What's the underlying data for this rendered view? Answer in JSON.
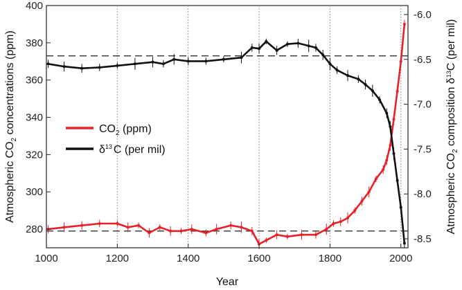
{
  "chart_data": {
    "type": "line",
    "xlabel": "Year",
    "ylabel_left": [
      "Atmospheric CO",
      "2",
      " concentrations (ppm)"
    ],
    "ylabel_right": [
      "Atmospheric CO",
      "2",
      " composition δ",
      "13",
      "C (per mil)"
    ],
    "xlim": [
      1000,
      2020
    ],
    "ylim_left": [
      270,
      400
    ],
    "ylim_right": [
      -8.6,
      -5.9
    ],
    "x_ticks": [
      1000,
      1200,
      1400,
      1600,
      1800,
      2000
    ],
    "y_ticks_left": [
      280,
      300,
      320,
      340,
      360,
      380,
      400
    ],
    "y_ticks_right": [
      "-6.0",
      "-6.5",
      "-7.0",
      "-7.5",
      "-8.0",
      "-8.5"
    ],
    "y_ticks_right_values": [
      -6.0,
      -6.5,
      -7.0,
      -7.5,
      -8.0,
      -8.5
    ],
    "reference_lines": [
      {
        "axis": "left",
        "value": 279
      },
      {
        "axis": "left",
        "value": 373
      }
    ],
    "series": [
      {
        "name_parts": [
          "CO",
          "2",
          " (ppm)"
        ],
        "color": "#e8202a",
        "axis": "left",
        "x": [
          1005,
          1050,
          1100,
          1150,
          1200,
          1230,
          1260,
          1290,
          1320,
          1350,
          1380,
          1410,
          1450,
          1480,
          1520,
          1550,
          1580,
          1600,
          1620,
          1650,
          1680,
          1720,
          1760,
          1790,
          1810,
          1830,
          1850,
          1870,
          1890,
          1910,
          1930,
          1950,
          1960,
          1970,
          1980,
          1990,
          2000,
          2010
        ],
        "y": [
          280,
          281,
          282,
          283,
          283,
          281,
          282,
          278,
          281,
          279,
          279,
          280,
          278,
          280,
          282,
          281,
          279,
          272,
          274,
          277,
          276,
          277,
          277,
          280,
          283,
          284,
          286,
          290,
          295,
          300,
          307,
          312,
          317,
          325,
          339,
          354,
          370,
          390
        ]
      },
      {
        "name_parts": [
          "δ",
          "13",
          "C (per mil)"
        ],
        "color": "#111111",
        "axis": "right",
        "x": [
          1005,
          1050,
          1100,
          1150,
          1200,
          1250,
          1300,
          1330,
          1360,
          1400,
          1450,
          1500,
          1550,
          1580,
          1600,
          1620,
          1650,
          1680,
          1710,
          1740,
          1760,
          1780,
          1800,
          1820,
          1850,
          1880,
          1900,
          1920,
          1940,
          1960,
          1970,
          1980,
          1990,
          2000,
          2010
        ],
        "y": [
          -6.55,
          -6.58,
          -6.6,
          -6.59,
          -6.57,
          -6.55,
          -6.53,
          -6.55,
          -6.5,
          -6.52,
          -6.52,
          -6.5,
          -6.48,
          -6.37,
          -6.38,
          -6.3,
          -6.4,
          -6.33,
          -6.32,
          -6.35,
          -6.37,
          -6.45,
          -6.55,
          -6.62,
          -6.68,
          -6.72,
          -6.78,
          -6.85,
          -6.95,
          -7.1,
          -7.25,
          -7.55,
          -7.85,
          -8.15,
          -8.55
        ]
      }
    ]
  }
}
